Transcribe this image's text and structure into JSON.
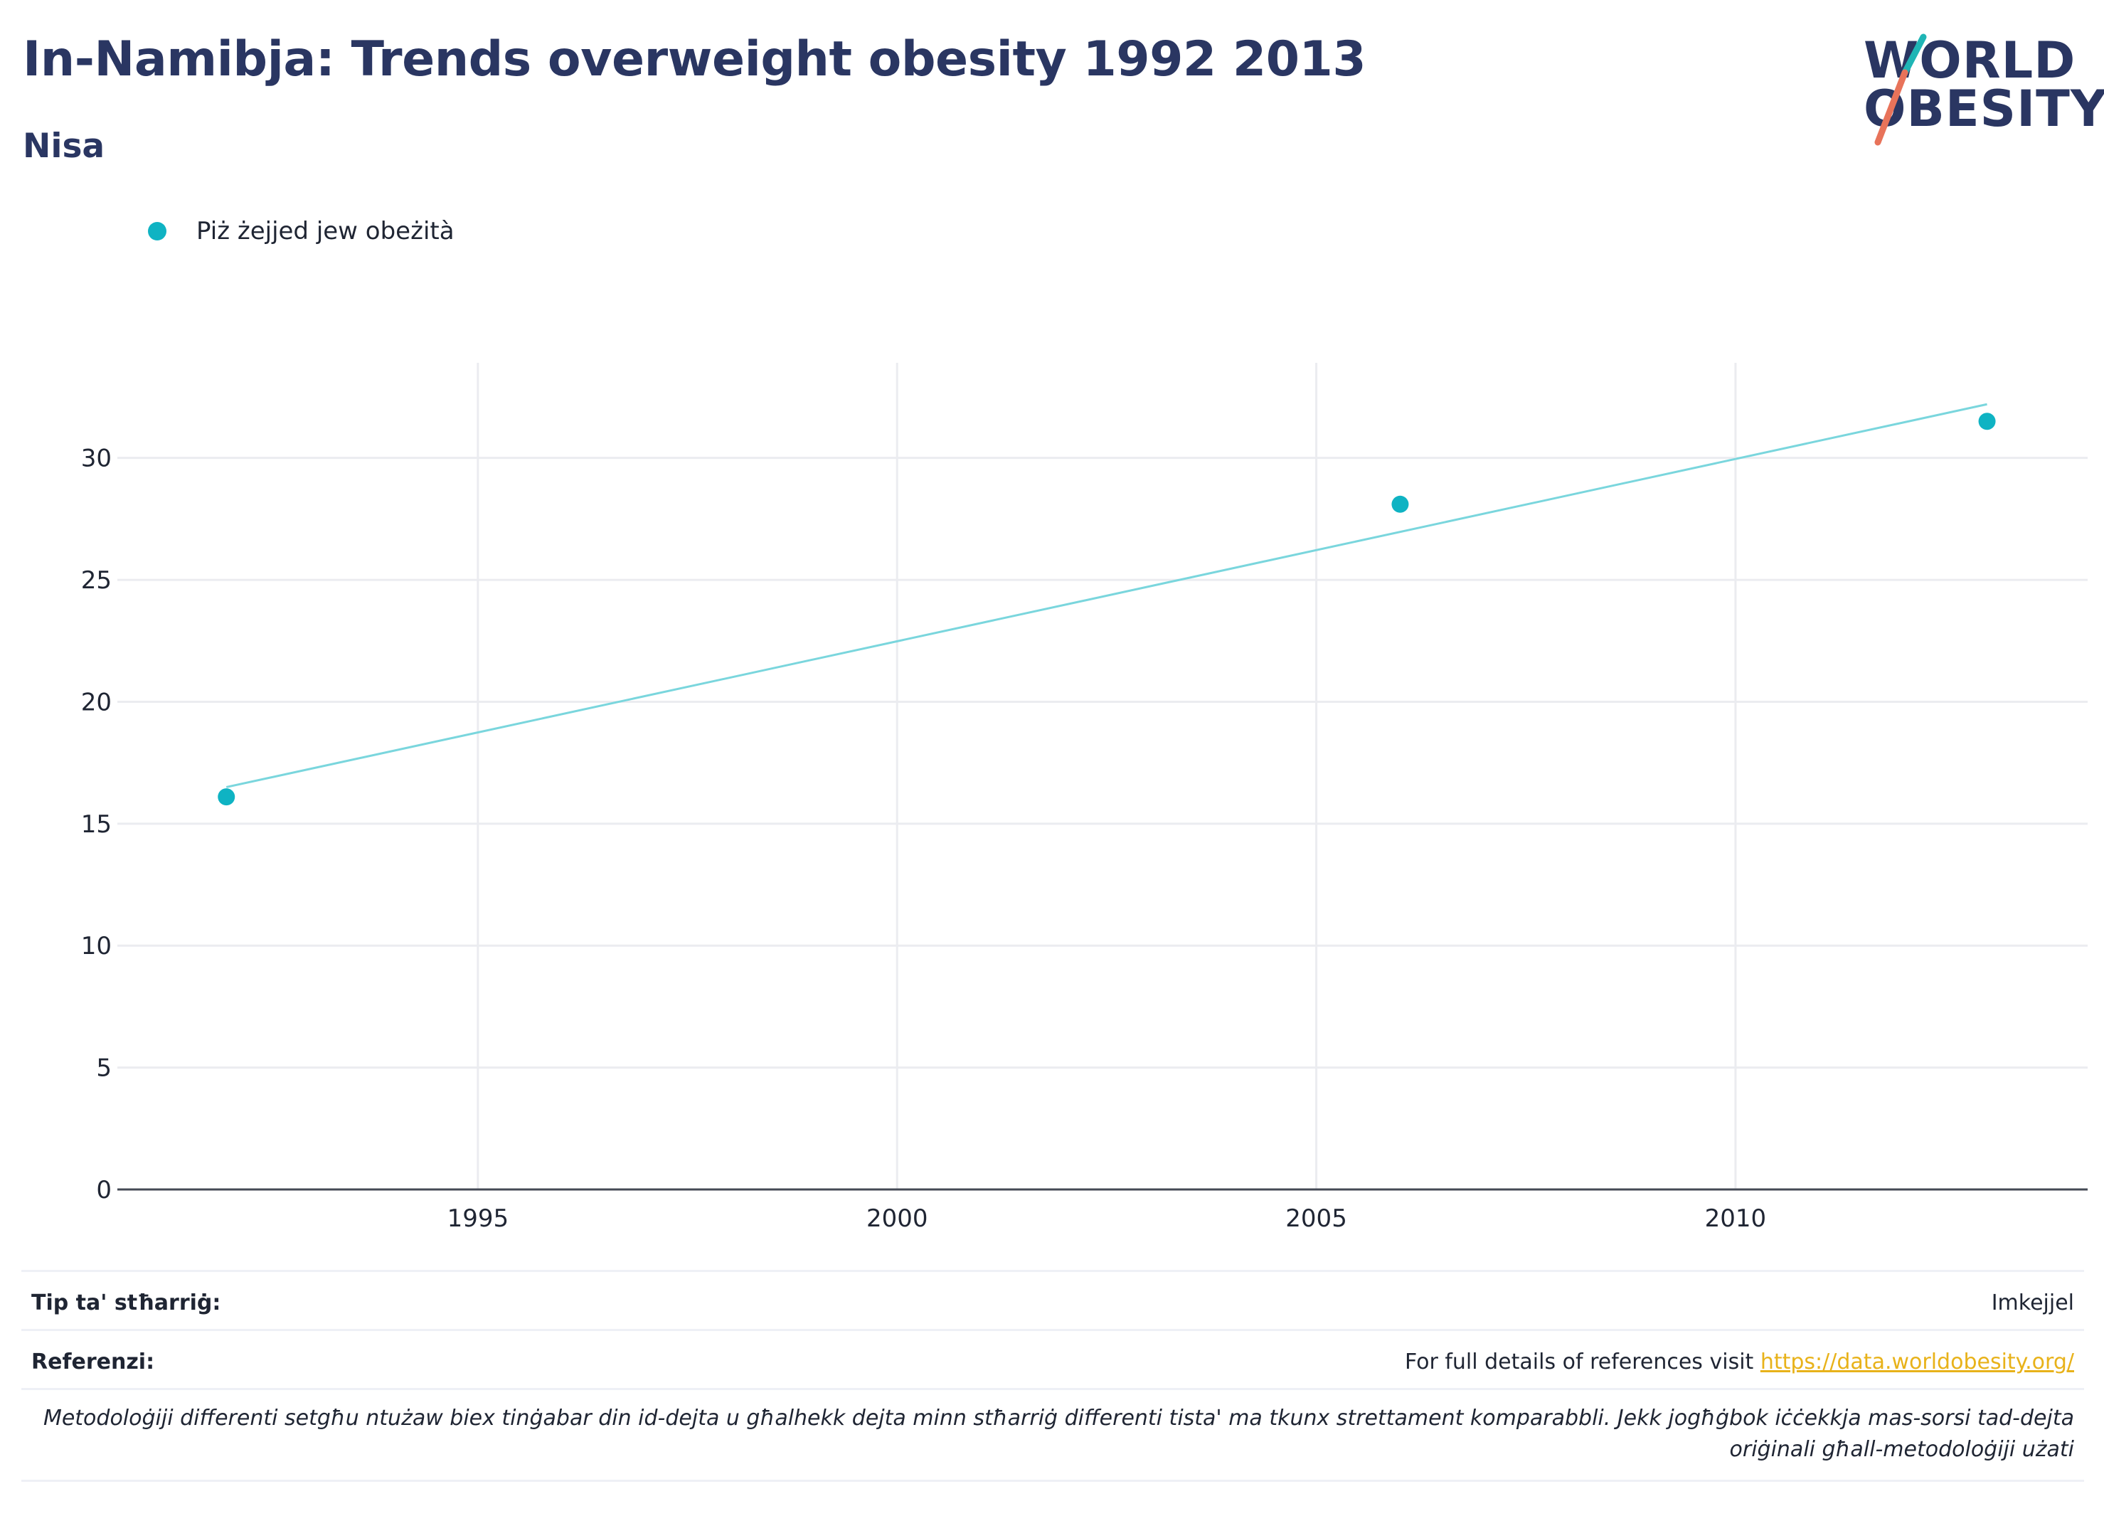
{
  "header": {
    "title": "In-Namibja: Trends overweight obesity 1992 2013",
    "subtitle": "Nisa"
  },
  "logo": {
    "line1": "WORLD",
    "line2": "OBESITY",
    "slash_colors": [
      "#1fb5b5",
      "#e8735a"
    ]
  },
  "legend": {
    "items": [
      {
        "label": "Piż żejjed jew obeżità",
        "marker": "circle",
        "color": "#0fb3c3"
      }
    ]
  },
  "chart_data": {
    "type": "scatter",
    "x_ticks": [
      "1995",
      "2000",
      "2005",
      "2010"
    ],
    "y_ticks": [
      "0",
      "5",
      "10",
      "15",
      "20",
      "25",
      "30"
    ],
    "xlim": [
      1990.7,
      2014.2
    ],
    "ylim": [
      0,
      33.9
    ],
    "grid": true,
    "legend_position": "top-left",
    "series": [
      {
        "name": "Piż żejjed jew obeżità",
        "color": "#0fb3c3",
        "points": [
          {
            "x": 1992,
            "y": 16.1
          },
          {
            "x": 2006,
            "y": 28.1
          },
          {
            "x": 2013,
            "y": 31.5
          }
        ]
      }
    ],
    "trendline": {
      "color": "#7ad6dd",
      "points": [
        {
          "x": 1992,
          "y": 16.5
        },
        {
          "x": 2013,
          "y": 32.2
        }
      ]
    }
  },
  "footer": {
    "source_type_label": "Tip ta' stħarriġ:",
    "source_type_value": "Imkejjel",
    "references_label": "Referenzi:",
    "references_text": "For full details of references visit ",
    "references_link": "https://data.worldobesity.org/",
    "note": "Metodoloġiji differenti setgħu ntużaw biex tinġabar din id-dejta u għalhekk dejta minn stħarriġ differenti tista' ma tkunx strettament komparabbli. Jekk jogħġbok iċċekkja mas-sorsi tad-dejta oriġinali għall-metodoloġiji użati"
  }
}
